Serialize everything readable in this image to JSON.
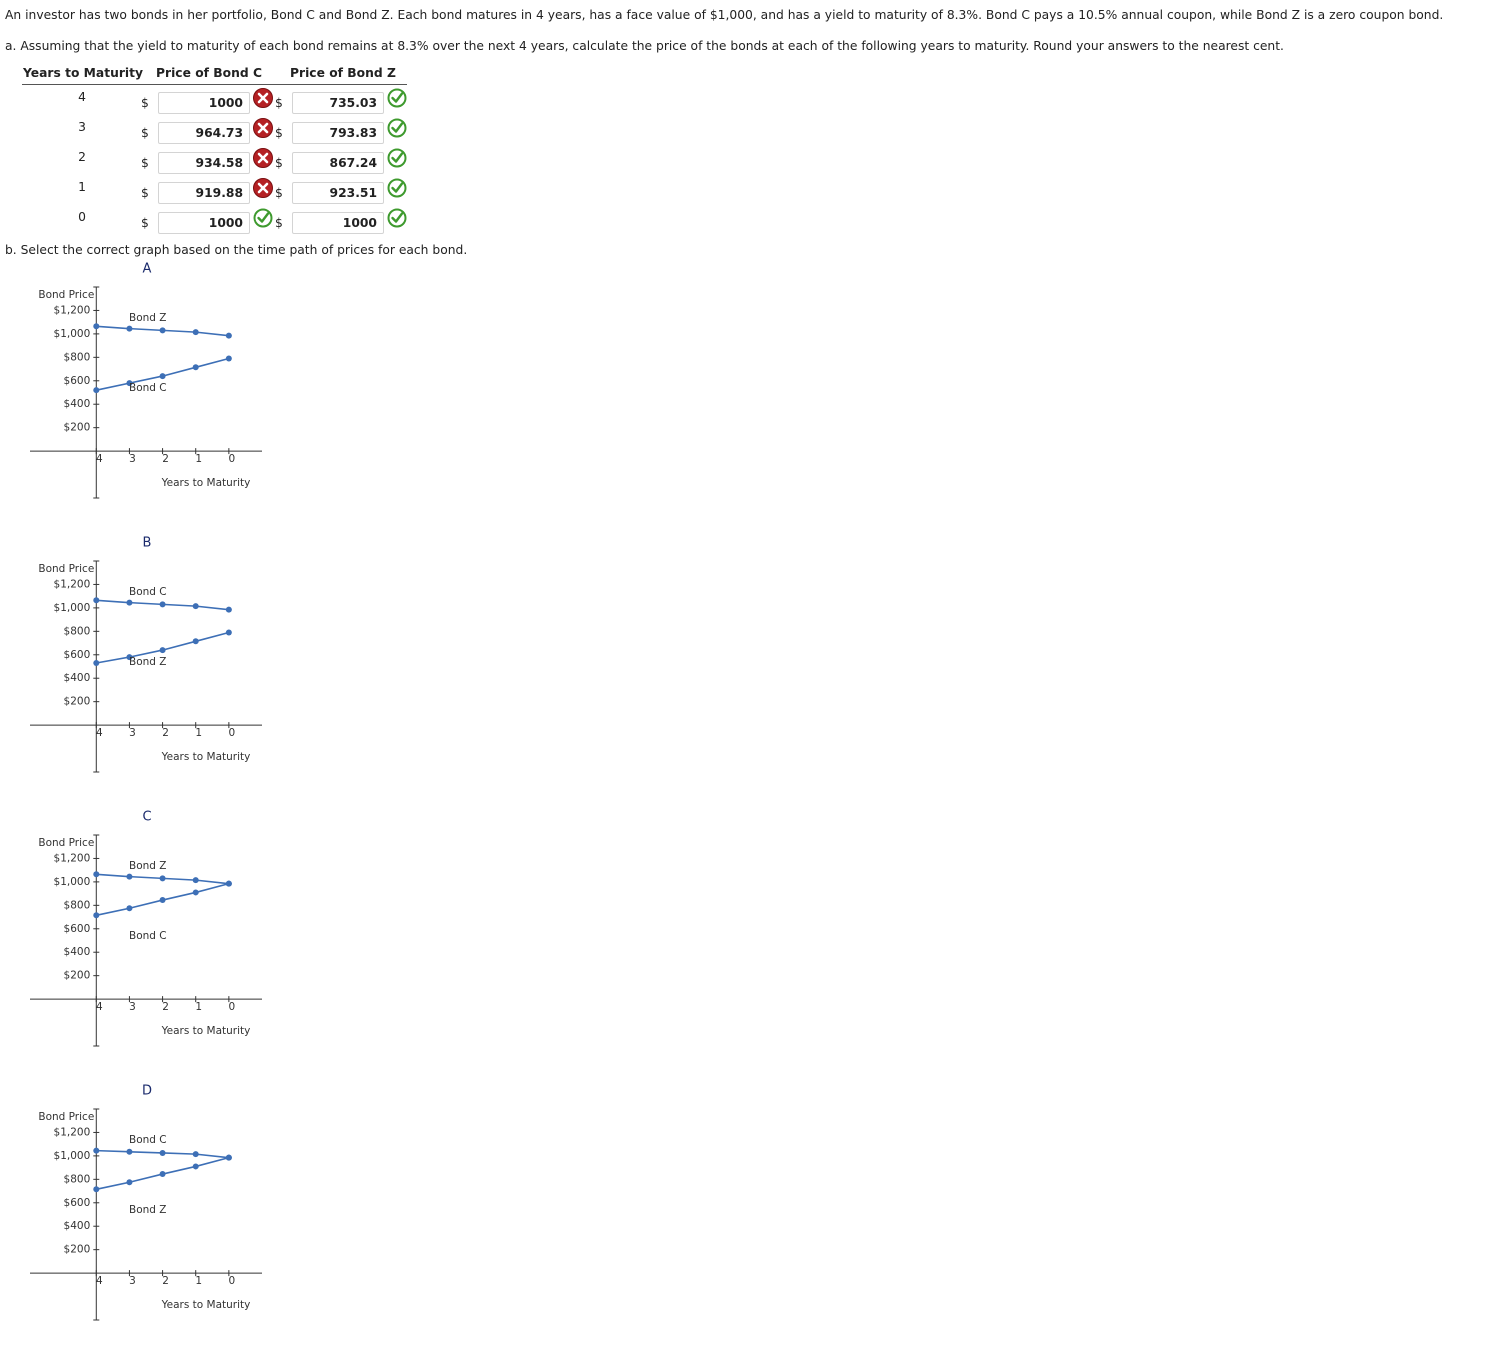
{
  "intro": "An investor has two bonds in her portfolio, Bond C and Bond Z. Each bond matures in 4 years, has a face value of $1,000, and has a yield to maturity of 8.3%. Bond C pays a 10.5% annual coupon, while Bond Z is a zero coupon bond.",
  "part_a": {
    "prompt": "a. Assuming that the yield to maturity of each bond remains at 8.3% over the next 4 years, calculate the price of the bonds at each of the following years to maturity. Round your answers to the nearest cent."
  },
  "table": {
    "headers": [
      "Years to Maturity",
      "Price of Bond C",
      "Price of Bond Z"
    ],
    "currency": "$",
    "rows": [
      {
        "years": "4",
        "bond_c": "1000",
        "bond_c_status": "incorrect",
        "bond_z": "735.03",
        "bond_z_status": "correct"
      },
      {
        "years": "3",
        "bond_c": "964.73",
        "bond_c_status": "incorrect",
        "bond_z": "793.83",
        "bond_z_status": "correct"
      },
      {
        "years": "2",
        "bond_c": "934.58",
        "bond_c_status": "incorrect",
        "bond_z": "867.24",
        "bond_z_status": "correct"
      },
      {
        "years": "1",
        "bond_c": "919.88",
        "bond_c_status": "incorrect",
        "bond_z": "923.51",
        "bond_z_status": "correct"
      },
      {
        "years": "0",
        "bond_c": "1000",
        "bond_c_status": "correct",
        "bond_z": "1000",
        "bond_z_status": "correct"
      }
    ]
  },
  "part_b": {
    "prompt": "b. Select the correct graph based on the time path of prices for each bond."
  },
  "chart_data": [
    {
      "type": "line",
      "title": "A",
      "y_label": "Bond Price",
      "x_label": "Years to Maturity",
      "x": [
        4,
        3,
        2,
        1,
        0
      ],
      "xlim": [
        6,
        -1
      ],
      "xticks": [
        4,
        3,
        2,
        1,
        0
      ],
      "ylim": [
        -400,
        1400
      ],
      "yticks": [
        {
          "value": 1200,
          "label": "$1,200"
        },
        {
          "value": 1000,
          "label": "$1,000"
        },
        {
          "value": 800,
          "label": "$800"
        },
        {
          "value": 600,
          "label": "$600"
        },
        {
          "value": 400,
          "label": "$400"
        },
        {
          "value": 200,
          "label": "$200"
        }
      ],
      "series": [
        {
          "name": "Bond Z",
          "color": "#3d6fb6",
          "values": [
            1065,
            1045,
            1030,
            1015,
            985
          ]
        },
        {
          "name": "Bond C",
          "color": "#3d6fb6",
          "values": [
            520,
            580,
            640,
            715,
            790
          ]
        }
      ]
    },
    {
      "type": "line",
      "title": "B",
      "y_label": "Bond Price",
      "x_label": "Years to Maturity",
      "x": [
        4,
        3,
        2,
        1,
        0
      ],
      "xlim": [
        6,
        -1
      ],
      "xticks": [
        4,
        3,
        2,
        1,
        0
      ],
      "ylim": [
        -400,
        1400
      ],
      "yticks": [
        {
          "value": 1200,
          "label": "$1,200"
        },
        {
          "value": 1000,
          "label": "$1,000"
        },
        {
          "value": 800,
          "label": "$800"
        },
        {
          "value": 600,
          "label": "$600"
        },
        {
          "value": 400,
          "label": "$400"
        },
        {
          "value": 200,
          "label": "$200"
        }
      ],
      "series": [
        {
          "name": "Bond C",
          "color": "#3d6fb6",
          "values": [
            1065,
            1045,
            1030,
            1015,
            985
          ]
        },
        {
          "name": "Bond Z",
          "color": "#3d6fb6",
          "values": [
            530,
            580,
            640,
            715,
            790
          ]
        }
      ]
    },
    {
      "type": "line",
      "title": "C",
      "y_label": "Bond Price",
      "x_label": "Years to Maturity",
      "x": [
        4,
        3,
        2,
        1,
        0
      ],
      "xlim": [
        6,
        -1
      ],
      "xticks": [
        4,
        3,
        2,
        1,
        0
      ],
      "ylim": [
        -400,
        1400
      ],
      "yticks": [
        {
          "value": 1200,
          "label": "$1,200"
        },
        {
          "value": 1000,
          "label": "$1,000"
        },
        {
          "value": 800,
          "label": "$800"
        },
        {
          "value": 600,
          "label": "$600"
        },
        {
          "value": 400,
          "label": "$400"
        },
        {
          "value": 200,
          "label": "$200"
        }
      ],
      "series": [
        {
          "name": "Bond Z",
          "color": "#3d6fb6",
          "values": [
            1065,
            1045,
            1030,
            1015,
            985
          ]
        },
        {
          "name": "Bond C",
          "color": "#3d6fb6",
          "values": [
            715,
            775,
            845,
            910,
            985
          ]
        }
      ]
    },
    {
      "type": "line",
      "title": "D",
      "y_label": "Bond Price",
      "x_label": "Years to Maturity",
      "x": [
        4,
        3,
        2,
        1,
        0
      ],
      "xlim": [
        6,
        -1
      ],
      "xticks": [
        4,
        3,
        2,
        1,
        0
      ],
      "ylim": [
        -400,
        1400
      ],
      "yticks": [
        {
          "value": 1200,
          "label": "$1,200"
        },
        {
          "value": 1000,
          "label": "$1,000"
        },
        {
          "value": 800,
          "label": "$800"
        },
        {
          "value": 600,
          "label": "$600"
        },
        {
          "value": 400,
          "label": "$400"
        },
        {
          "value": 200,
          "label": "$200"
        }
      ],
      "series": [
        {
          "name": "Bond C",
          "color": "#3d6fb6",
          "values": [
            1045,
            1035,
            1025,
            1015,
            985
          ]
        },
        {
          "name": "Bond Z",
          "color": "#3d6fb6",
          "values": [
            715,
            775,
            845,
            910,
            985
          ]
        }
      ]
    }
  ]
}
